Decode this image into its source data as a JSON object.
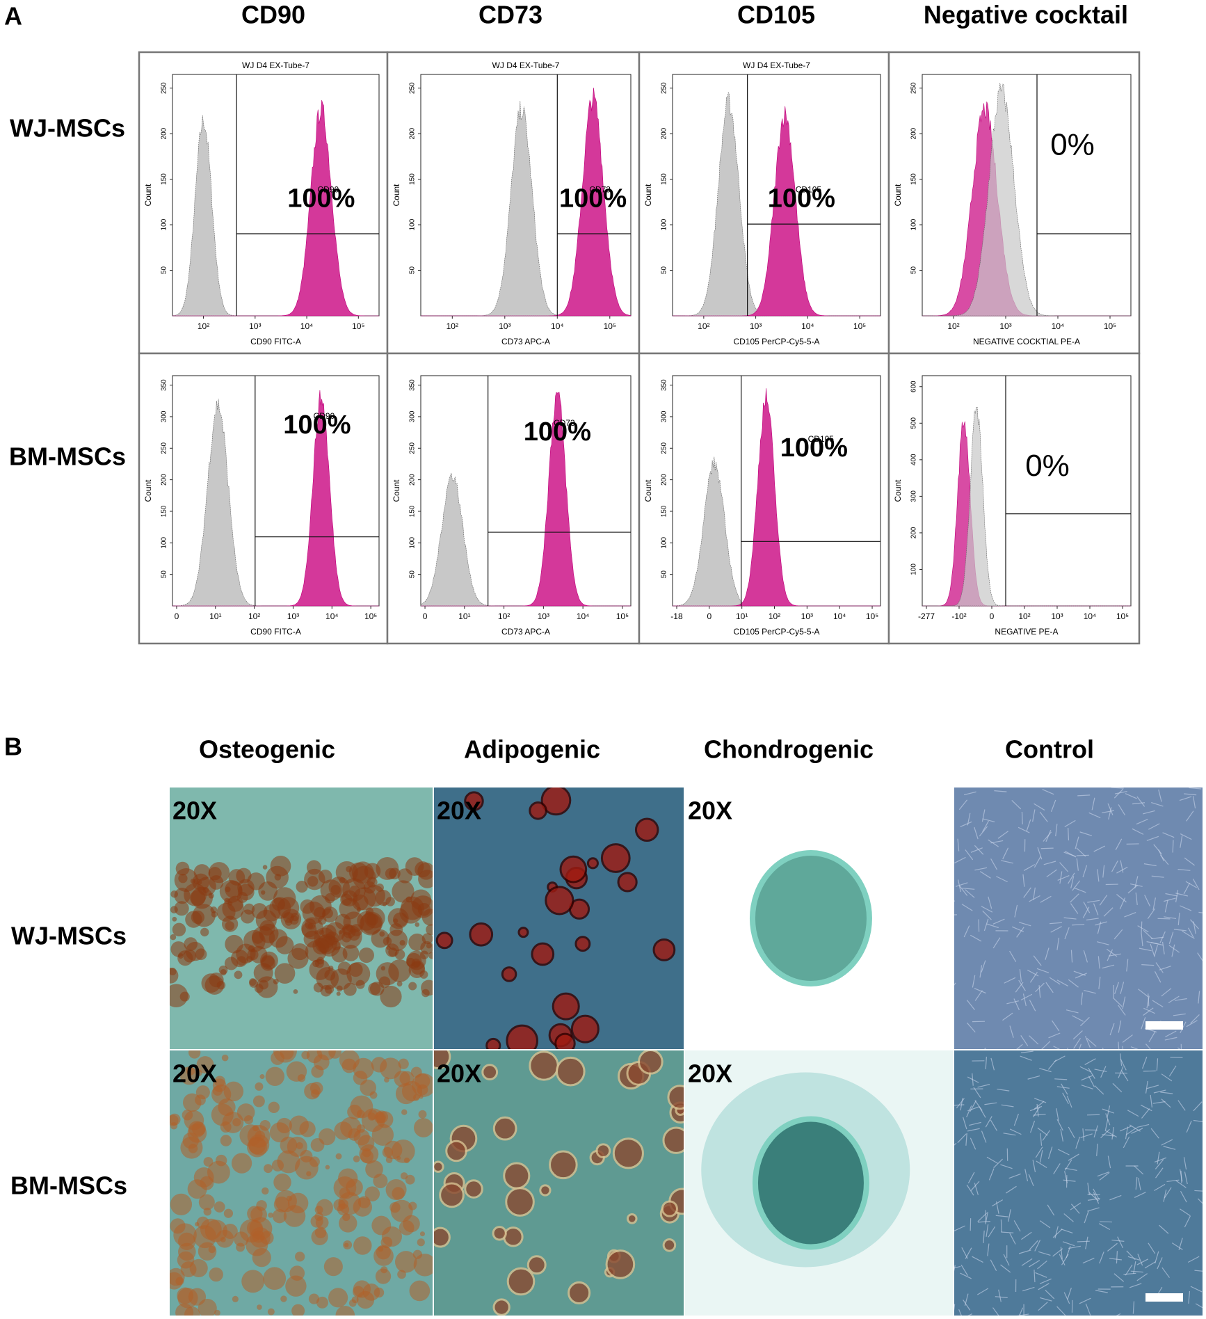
{
  "panel_a": {
    "label": "A",
    "columns": [
      "CD90",
      "CD73",
      "CD105",
      "Negative cocktail"
    ],
    "rows": [
      "WJ-MSCs",
      "BM-MSCs"
    ],
    "plots": [
      [
        {
          "title": "WJ D4 EX-Tube-7",
          "y_label": "Count",
          "x_label": "CD90 FITC-A",
          "gate": "CD90",
          "percent": "100%",
          "y_ticks": [
            50,
            100,
            150,
            200,
            250
          ],
          "x_ticks": [
            "10²",
            "10³",
            "10⁴",
            "10⁵"
          ]
        },
        {
          "title": "WJ D4 EX-Tube-7",
          "y_label": "Count",
          "x_label": "CD73 APC-A",
          "gate": "CD73",
          "percent": "100%",
          "y_ticks": [
            50,
            100,
            150,
            200,
            250
          ],
          "x_ticks": [
            "10²",
            "10³",
            "10⁴",
            "10⁵"
          ]
        },
        {
          "title": "WJ D4 EX-Tube-7",
          "y_label": "Count",
          "x_label": "CD105 PerCP-Cy5-5-A",
          "gate": "CD105",
          "percent": "100%",
          "y_ticks": [
            50,
            100,
            150,
            200,
            250
          ],
          "x_ticks": [
            "10²",
            "10³",
            "10⁴",
            "10⁵"
          ]
        },
        {
          "y_label": "Count",
          "x_label": "NEGATIVE COCKTIAL PE-A",
          "percent": "0%",
          "y_ticks": [
            50,
            100,
            150,
            200,
            250
          ],
          "x_ticks": [
            "10²",
            "10³",
            "10⁴",
            "10⁵"
          ]
        }
      ],
      [
        {
          "y_label": "Count",
          "x_label": "CD90 FITC-A",
          "gate": "CD90",
          "percent": "100%",
          "y_ticks": [
            50,
            100,
            150,
            200,
            250,
            300,
            350
          ],
          "x_ticks": [
            "0",
            "10¹",
            "10²",
            "10³",
            "10⁴",
            "10⁵"
          ]
        },
        {
          "y_label": "Count",
          "x_label": "CD73 APC-A",
          "gate": "CD73",
          "percent": "100%",
          "y_ticks": [
            50,
            100,
            150,
            200,
            250,
            300,
            350
          ],
          "x_ticks": [
            "0",
            "10¹",
            "10²",
            "10³",
            "10⁴",
            "10⁵"
          ]
        },
        {
          "y_label": "Count",
          "x_label": "CD105 PerCP-Cy5-5-A",
          "gate": "CD105",
          "percent": "100%",
          "y_ticks": [
            50,
            100,
            150,
            200,
            250,
            300,
            350
          ],
          "x_ticks": [
            "-18",
            "0",
            "10¹",
            "10²",
            "10³",
            "10⁴",
            "10⁵"
          ]
        },
        {
          "y_label": "Count",
          "x_label": "NEGATIVE PE-A",
          "percent": "0%",
          "y_ticks": [
            100,
            200,
            300,
            400,
            500,
            600
          ],
          "x_ticks": [
            "-277",
            "-10²",
            "0",
            "10²",
            "10³",
            "10⁴",
            "10⁵"
          ]
        }
      ]
    ]
  },
  "panel_b": {
    "label": "B",
    "columns": [
      "Osteogenic",
      "Adipogenic",
      "Chondrogenic",
      "Control"
    ],
    "rows": [
      "WJ-MSCs",
      "BM-MSCs"
    ],
    "magnification": [
      [
        "20X",
        "20X",
        "20X"
      ],
      [
        "20X",
        "20X",
        "20X"
      ]
    ]
  }
}
